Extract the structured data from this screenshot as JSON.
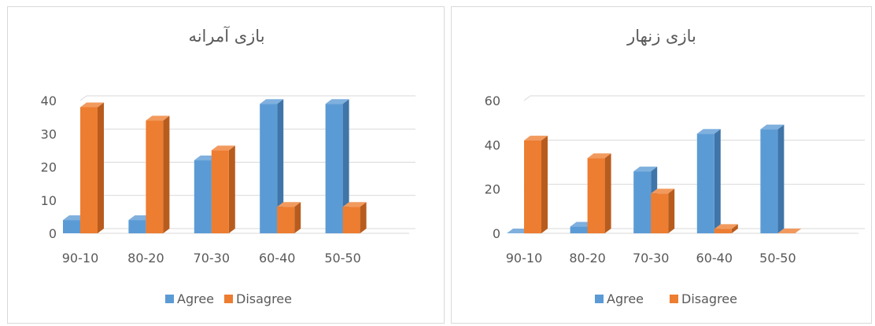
{
  "colors": {
    "agree": "#5B9BD5",
    "agree_top": "#7FB0DE",
    "agree_side": "#3F75A8",
    "disagree": "#ED7D31",
    "disagree_top": "#F29A5E",
    "disagree_side": "#B85C1E",
    "grid": "#d9d9d9",
    "text": "#595959"
  },
  "chart_data": [
    {
      "type": "bar",
      "title": "بازی آمرانه",
      "categories": [
        "90-10",
        "80-20",
        "70-30",
        "60-40",
        "50-50"
      ],
      "series": [
        {
          "name": "Agree",
          "values": [
            4,
            4,
            22,
            39,
            39
          ]
        },
        {
          "name": "Disagree",
          "values": [
            38,
            34,
            25,
            8,
            8
          ]
        }
      ],
      "yticks": [
        0,
        10,
        20,
        30,
        40
      ],
      "ylim": [
        0,
        40
      ],
      "grid": true,
      "legend": "bottom",
      "style": "3d-clustered-column"
    },
    {
      "type": "bar",
      "title": "بازی زنهار",
      "categories": [
        "90-10",
        "80-20",
        "70-30",
        "60-40",
        "50-50"
      ],
      "series": [
        {
          "name": "Agree",
          "values": [
            0,
            3,
            28,
            45,
            47
          ]
        },
        {
          "name": "Disagree",
          "values": [
            42,
            34,
            18,
            2,
            0
          ]
        }
      ],
      "yticks": [
        0,
        20,
        40,
        60
      ],
      "ylim": [
        0,
        60
      ],
      "grid": true,
      "legend": "bottom",
      "style": "3d-clustered-column"
    }
  ]
}
